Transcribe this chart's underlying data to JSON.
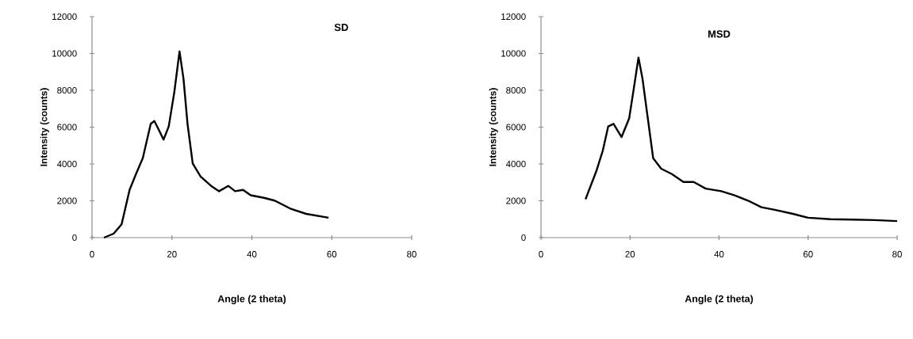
{
  "chart_data": [
    {
      "type": "line",
      "title": "SD",
      "xlabel": "Angle (2 theta)",
      "ylabel": "Intensity (counts)",
      "color": "#000000",
      "x": [
        3.0,
        5.4,
        7.4,
        9.4,
        11.0,
        12.7,
        14.7,
        15.6,
        16.6,
        17.9,
        19.2,
        20.6,
        21.9,
        22.9,
        23.9,
        25.2,
        27.2,
        29.8,
        31.8,
        34.1,
        35.8,
        37.8,
        39.7,
        43.0,
        45.7,
        49.6,
        53.6,
        59.2
      ],
      "values": [
        0,
        215,
        720,
        2590,
        3450,
        4310,
        6180,
        6330,
        5900,
        5320,
        6040,
        7910,
        10110,
        8620,
        6180,
        4030,
        3310,
        2810,
        2520,
        2810,
        2520,
        2590,
        2300,
        2160,
        2010,
        1580,
        1290,
        1080
      ],
      "xlim": [
        0,
        80
      ],
      "ylim": [
        0,
        12000
      ],
      "xticks": [
        0,
        20,
        40,
        60,
        80
      ],
      "yticks": [
        0,
        2000,
        4000,
        6000,
        8000,
        10000,
        12000
      ]
    },
    {
      "type": "line",
      "title": "MSD",
      "xlabel": "Angle (2 theta)",
      "ylabel": "Intensity (counts)",
      "color": "#000000",
      "x": [
        10.0,
        12.4,
        13.9,
        15.1,
        16.3,
        18.1,
        19.8,
        21.0,
        21.9,
        22.8,
        24.0,
        25.2,
        27.0,
        29.4,
        32.0,
        34.3,
        37.0,
        40.5,
        43.5,
        46.5,
        49.5,
        52.5,
        56.6,
        60,
        65,
        70,
        75,
        80
      ],
      "values": [
        2080,
        3590,
        4740,
        6040,
        6180,
        5460,
        6470,
        8340,
        9780,
        8630,
        6470,
        4310,
        3740,
        3450,
        3020,
        3020,
        2660,
        2520,
        2300,
        2010,
        1650,
        1510,
        1290,
        1080,
        1000,
        980,
        950,
        900
      ],
      "xlim": [
        0,
        80
      ],
      "ylim": [
        0,
        12000
      ],
      "xticks": [
        0,
        20,
        40,
        60,
        80
      ],
      "yticks": [
        0,
        2000,
        4000,
        6000,
        8000,
        10000,
        12000
      ]
    }
  ]
}
